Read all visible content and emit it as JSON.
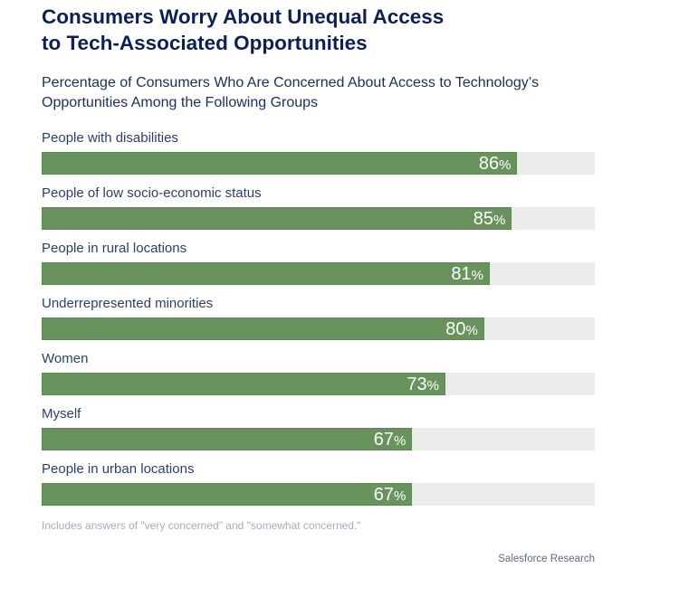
{
  "chart_data": {
    "type": "bar",
    "orientation": "horizontal",
    "title": "Consumers Worry About Unequal Access to Tech-Associated Opportunities",
    "title_lines": [
      "Consumers Worry About Unequal Access",
      "to Tech-Associated Opportunities"
    ],
    "subtitle_lines": [
      "Percentage of Consumers Who Are Concerned About Access to Technology’s",
      "Opportunities Among the Following Groups"
    ],
    "categories": [
      "People with disabilities",
      "People of low socio-economic status",
      "People in rural locations",
      "Underrepresented minorities",
      "Women",
      "Myself",
      "People in urban locations"
    ],
    "values": [
      86,
      85,
      81,
      80,
      73,
      67,
      67
    ],
    "unit": "%",
    "xlim": [
      0,
      100
    ],
    "grid": false,
    "colors": {
      "bar": "#68935d",
      "track": "#ececec",
      "title": "#0b1f5c"
    },
    "note": "Includes answers of \"very concerned\" and \"somewhat concerned.\"",
    "source": "Salesforce Research"
  }
}
